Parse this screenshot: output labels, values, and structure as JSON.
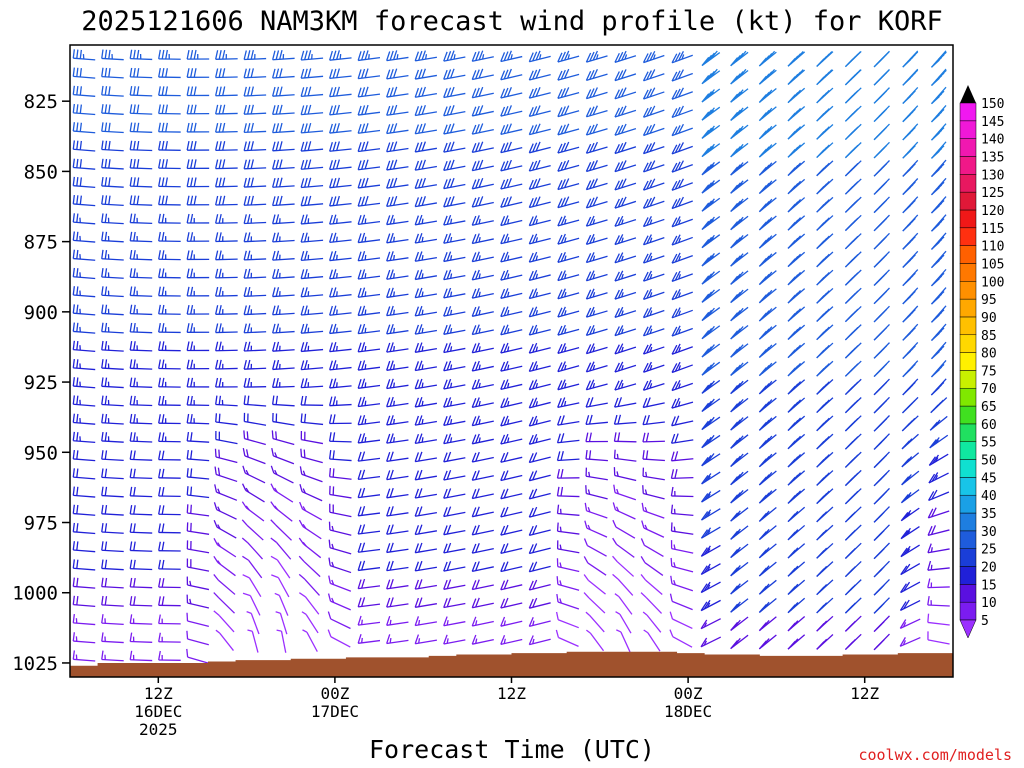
{
  "chart_data": {
    "type": "wind-barb-profile",
    "title": "2025121606 NAM3KM forecast wind profile (kt) for KORF",
    "xlabel": "Forecast Time (UTC)",
    "ylabel": "",
    "y_ticks": [
      825,
      850,
      875,
      900,
      925,
      950,
      975,
      1000,
      1025
    ],
    "ylim": [
      1030,
      805
    ],
    "x_ticks": [
      {
        "hour": 12,
        "lines": [
          "12Z",
          "16DEC",
          "2025"
        ]
      },
      {
        "hour": 24,
        "lines": [
          "00Z",
          "17DEC"
        ]
      },
      {
        "hour": 36,
        "lines": [
          "12Z"
        ]
      },
      {
        "hour": 48,
        "lines": [
          "00Z",
          "18DEC"
        ]
      },
      {
        "hour": 60,
        "lines": [
          "12Z"
        ]
      }
    ],
    "xlim": [
      6,
      66
    ],
    "colorbar": {
      "levels": [
        5,
        10,
        15,
        20,
        25,
        30,
        35,
        40,
        45,
        50,
        55,
        60,
        65,
        70,
        75,
        80,
        85,
        90,
        95,
        100,
        105,
        110,
        115,
        120,
        125,
        130,
        135,
        140,
        145,
        150
      ],
      "colors": [
        "#9b30ff",
        "#7b1cf0",
        "#5a10e0",
        "#2020d8",
        "#1a3ed8",
        "#1e5cdc",
        "#1e7ee0",
        "#1aa0e6",
        "#18c4e8",
        "#10e0d0",
        "#10e8a0",
        "#20e060",
        "#40e020",
        "#80e800",
        "#c8f000",
        "#fff000",
        "#ffd800",
        "#ffc000",
        "#ffa800",
        "#ff9000",
        "#ff7800",
        "#ff6000",
        "#ff3010",
        "#f01818",
        "#e01838",
        "#e81860",
        "#f01888",
        "#f018b0",
        "#f018d8",
        "#f018f0"
      ],
      "unit": "kt"
    },
    "terrain_pressure_hPa": [
      1026,
      1025,
      1025,
      1025,
      1025,
      1024.5,
      1024,
      1024,
      1023.5,
      1023.5,
      1023,
      1023,
      1023,
      1022.5,
      1022,
      1022,
      1021.5,
      1021.5,
      1021,
      1021,
      1021,
      1021,
      1021.5,
      1022,
      1022,
      1022.5,
      1022.5,
      1022.5,
      1022,
      1022,
      1021.5,
      1021.5
    ],
    "wind_regimes": [
      {
        "name": "upper_westerly",
        "speed_kt": [
          28,
          38
        ],
        "dir_deg": [
          255,
          285
        ]
      },
      {
        "name": "low_level_light",
        "speed_kt": [
          5,
          12
        ],
        "dir_deg": [
          160,
          220
        ]
      },
      {
        "name": "late_northwesterly",
        "speed_kt": [
          30,
          48
        ],
        "dir_deg": [
          300,
          330
        ]
      }
    ]
  },
  "footer": {
    "credit": "coolwx.com/models"
  }
}
